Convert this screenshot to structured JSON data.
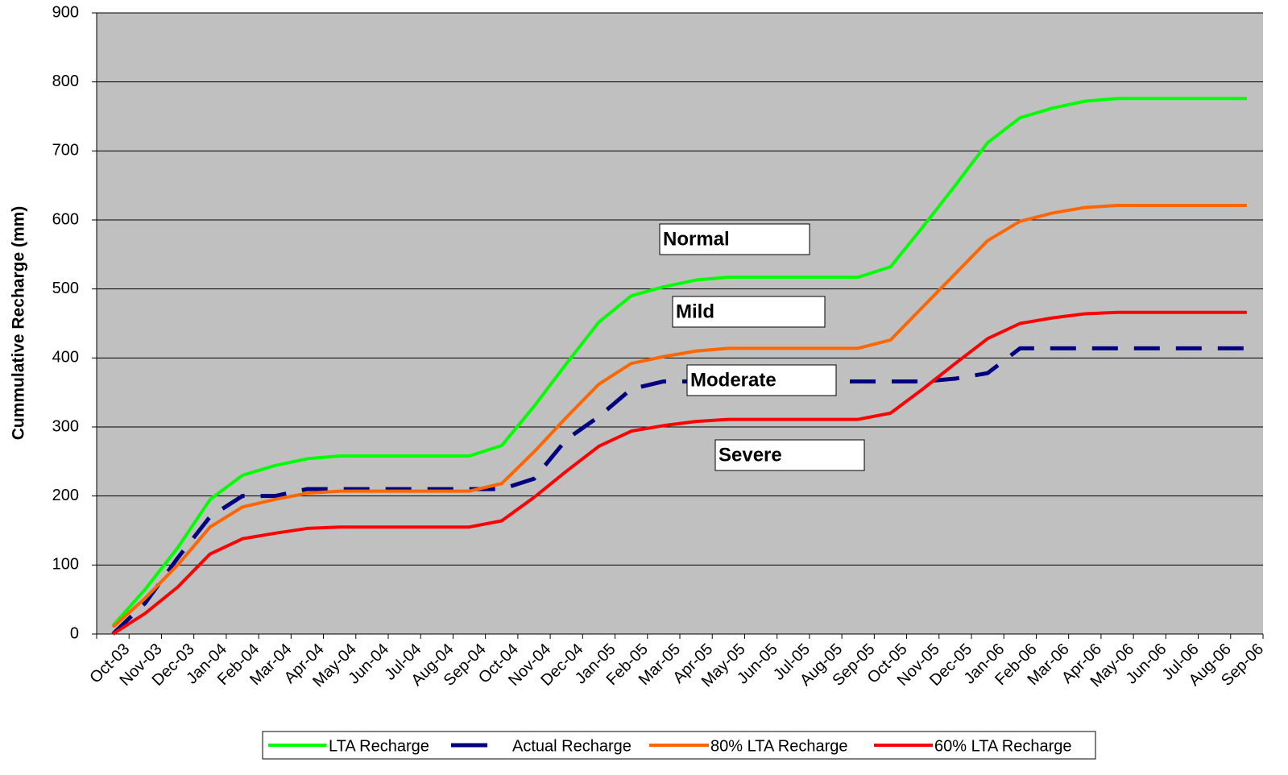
{
  "chart_data": {
    "type": "line",
    "y_label": "Cummulative Recharge (mm)",
    "categories": [
      "Oct-03",
      "Nov-03",
      "Dec-03",
      "Jan-04",
      "Feb-04",
      "Mar-04",
      "Apr-04",
      "May-04",
      "Jun-04",
      "Jul-04",
      "Aug-04",
      "Sep-04",
      "Oct-04",
      "Nov-04",
      "Dec-04",
      "Jan-05",
      "Feb-05",
      "Mar-05",
      "Apr-05",
      "May-05",
      "Jun-05",
      "Jul-05",
      "Aug-05",
      "Sep-05",
      "Oct-05",
      "Nov-05",
      "Dec-05",
      "Jan-06",
      "Feb-06",
      "Mar-06",
      "Apr-06",
      "May-06",
      "Jun-06",
      "Jul-06",
      "Aug-06",
      "Sep-06"
    ],
    "series": [
      {
        "name": "LTA Recharge",
        "color": "#00ff00",
        "values": [
          12,
          65,
          125,
          195,
          230,
          244,
          254,
          258,
          258,
          258,
          258,
          258,
          273,
          330,
          392,
          452,
          490,
          503,
          513,
          517,
          517,
          517,
          517,
          517,
          532,
          590,
          650,
          712,
          748,
          762,
          772,
          776,
          776,
          776,
          776,
          776
        ]
      },
      {
        "name": "Actual Recharge",
        "color": "#000080",
        "dashed": true,
        "values": [
          0,
          45,
          110,
          170,
          200,
          200,
          210,
          210,
          210,
          210,
          210,
          210,
          210,
          225,
          282,
          315,
          355,
          366,
          366,
          366,
          366,
          366,
          366,
          366,
          366,
          366,
          370,
          378,
          414,
          414,
          414,
          414,
          414,
          414,
          414,
          414
        ]
      },
      {
        "name": "80% LTA Recharge",
        "color": "#ff6600",
        "values": [
          10,
          52,
          100,
          155,
          184,
          195,
          204,
          207,
          207,
          207,
          207,
          207,
          218,
          264,
          314,
          362,
          392,
          402,
          410,
          414,
          414,
          414,
          414,
          414,
          426,
          474,
          522,
          570,
          598,
          610,
          618,
          621,
          621,
          621,
          621,
          621
        ]
      },
      {
        "name": "60% LTA Recharge",
        "color": "#ff0000",
        "values": [
          0,
          30,
          68,
          116,
          138,
          146,
          153,
          155,
          155,
          155,
          155,
          155,
          164,
          198,
          236,
          272,
          294,
          302,
          308,
          311,
          311,
          311,
          311,
          311,
          320,
          355,
          392,
          428,
          450,
          458,
          464,
          466,
          466,
          466,
          466,
          466
        ]
      }
    ],
    "annotations": [
      "Normal",
      "Mild",
      "Moderate",
      "Severe"
    ],
    "ylim": [
      0,
      900
    ],
    "yticks": [
      0,
      100,
      200,
      300,
      400,
      500,
      600,
      700,
      800,
      900
    ],
    "grid": true,
    "legend": "bottom"
  }
}
